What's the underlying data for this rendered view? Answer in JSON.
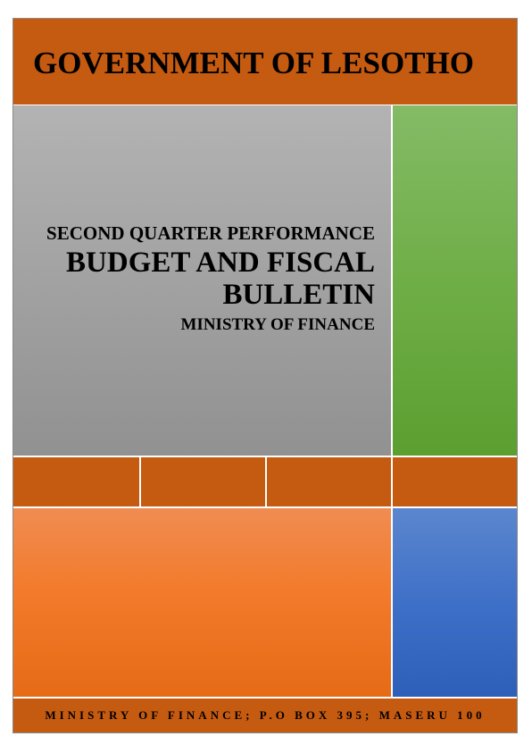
{
  "header": {
    "title": "GOVERNMENT OF LESOTHO"
  },
  "cover": {
    "subtitle": "SECOND QUARTER PERFORMANCE",
    "title_line1": "BUDGET AND FISCAL",
    "title_line2": "BULLETIN",
    "ministry": "MINISTRY OF FINANCE"
  },
  "footer": {
    "address": "MINISTRY OF FINANCE; P.O BOX 395; MASERU 100"
  },
  "colors": {
    "header_orange": "#c55a11",
    "panel_gray": "#a2a2a2",
    "panel_green": "#6fae47",
    "panel_orange": "#f27a2a",
    "panel_blue": "#3f70c8"
  }
}
